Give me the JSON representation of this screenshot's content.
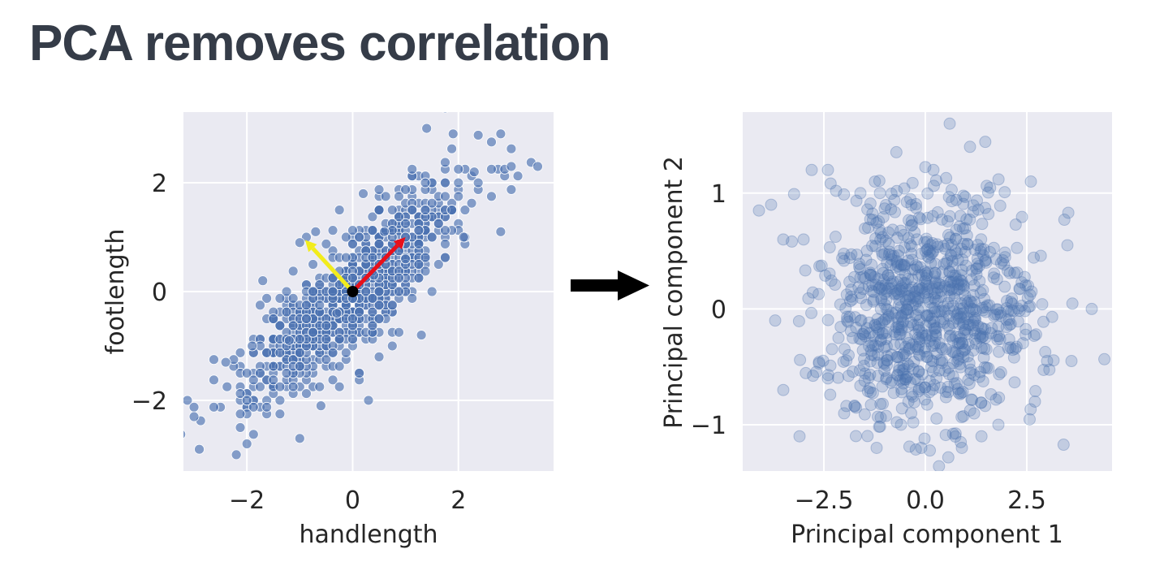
{
  "slide": {
    "title": "PCA removes correlation"
  },
  "colors": {
    "plot_background": "#eaeaf2",
    "grid": "#ffffff",
    "point": "#4c72b0",
    "title_text": "#353c48",
    "arrow_pc1": "#e8101a",
    "arrow_pc2": "#f2ec1c",
    "transform_arrow": "#000000"
  },
  "transform_arrow": {
    "icon": "right-arrow-icon"
  },
  "chart_data": [
    {
      "type": "scatter",
      "title": "",
      "xlabel": "handlength",
      "ylabel": "footlength",
      "xlim": [
        -3.2,
        3.8
      ],
      "ylim": [
        -3.3,
        3.3
      ],
      "xticks": [
        -2,
        0,
        2
      ],
      "yticks": [
        -2,
        0,
        2
      ],
      "xtick_labels": [
        "−2",
        "0",
        "2"
      ],
      "ytick_labels": [
        "−2",
        "0",
        "2"
      ],
      "grid": true,
      "style": "seaborn darkgrid",
      "point_alpha": 0.65,
      "point_edge": "white",
      "n_points": 900,
      "correlation": 0.85,
      "points_sample": [
        [
          -2.9,
          -2.9
        ],
        [
          -3.0,
          -2.3
        ],
        [
          -2.4,
          -1.3
        ],
        [
          -2.2,
          -3.0
        ],
        [
          -2.0,
          -2.8
        ],
        [
          -1.9,
          -1.0
        ],
        [
          -1.5,
          -0.5
        ],
        [
          -1.7,
          0.2
        ],
        [
          -1.0,
          0.9
        ],
        [
          -0.7,
          1.1
        ],
        [
          -0.6,
          -2.1
        ],
        [
          -1.0,
          -2.7
        ],
        [
          0.3,
          -2.0
        ],
        [
          0.5,
          -1.2
        ],
        [
          1.3,
          -0.8
        ],
        [
          1.5,
          1.0
        ],
        [
          2.1,
          1.0
        ],
        [
          2.3,
          2.2
        ],
        [
          1.4,
          3.0
        ],
        [
          1.9,
          2.9
        ],
        [
          2.8,
          2.9
        ],
        [
          2.8,
          1.1
        ],
        [
          3.0,
          2.3
        ],
        [
          3.5,
          2.3
        ],
        [
          0.2,
          1.8
        ],
        [
          0.6,
          1.1
        ],
        [
          -0.3,
          -0.4
        ],
        [
          0.4,
          0.3
        ],
        [
          1.0,
          0.6
        ],
        [
          -1.2,
          -0.9
        ]
      ],
      "mean_point": [
        0,
        0
      ],
      "arrows": [
        {
          "name": "pc1",
          "from": [
            0,
            0
          ],
          "to": [
            1.0,
            1.0
          ],
          "color": "red"
        },
        {
          "name": "pc2",
          "from": [
            0,
            0
          ],
          "to": [
            -0.9,
            0.95
          ],
          "color": "yellow"
        }
      ]
    },
    {
      "type": "scatter",
      "title": "",
      "xlabel": "Principal component 1",
      "ylabel": "Principal component 2",
      "xlim": [
        -4.5,
        4.6
      ],
      "ylim": [
        -1.4,
        1.7
      ],
      "xticks": [
        -2.5,
        0.0,
        2.5
      ],
      "yticks": [
        -1,
        0,
        1
      ],
      "xtick_labels": [
        "−2.5",
        "0.0",
        "2.5"
      ],
      "ytick_labels": [
        "−1",
        "0",
        "1"
      ],
      "grid": true,
      "style": "seaborn darkgrid",
      "point_alpha": 0.25,
      "n_points": 900,
      "correlation": 0.0,
      "points_sample": [
        [
          -4.1,
          0.85
        ],
        [
          -3.8,
          0.9
        ],
        [
          -3.5,
          0.6
        ],
        [
          -3.0,
          0.6
        ],
        [
          -2.8,
          1.2
        ],
        [
          -2.4,
          1.2
        ],
        [
          -3.7,
          -0.1
        ],
        [
          -3.5,
          -0.7
        ],
        [
          -3.1,
          -1.1
        ],
        [
          -1.6,
          1.0
        ],
        [
          0.6,
          1.6
        ],
        [
          0.2,
          1.2
        ],
        [
          1.1,
          1.4
        ],
        [
          2.6,
          1.1
        ],
        [
          3.5,
          0.55
        ],
        [
          4.1,
          0.0
        ],
        [
          3.6,
          -0.45
        ],
        [
          3.0,
          -0.45
        ],
        [
          2.7,
          -0.8
        ],
        [
          1.8,
          -1.0
        ],
        [
          0.9,
          -1.2
        ],
        [
          -0.1,
          -1.2
        ],
        [
          -0.6,
          -1.0
        ],
        [
          -1.2,
          -1.2
        ],
        [
          -2.4,
          -0.6
        ],
        [
          0.0,
          0.1
        ],
        [
          0.8,
          -0.3
        ],
        [
          -0.7,
          0.4
        ],
        [
          1.5,
          0.4
        ],
        [
          -1.5,
          -0.2
        ]
      ]
    }
  ]
}
